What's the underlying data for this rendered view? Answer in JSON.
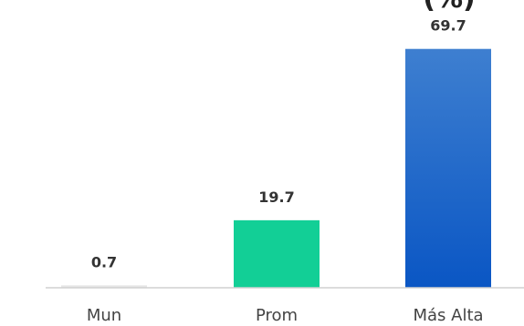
{
  "chart_data": {
    "type": "bar",
    "title_fragment": "(%)",
    "categories": [
      "Mun",
      "Prom",
      "Más Alta"
    ],
    "values": [
      0.7,
      19.7,
      69.7
    ],
    "data_labels": [
      "0.7",
      "19.7",
      "69.7"
    ],
    "ylim": [
      0,
      76
    ],
    "grid": false,
    "legend": "none",
    "colors": {
      "Mun": "#e6e6e6",
      "Prom": "#12cf96",
      "Más Alta_top": "#3e7fd0",
      "Más Alta_bottom": "#0a56c4",
      "axis": "#d0d0d0"
    }
  }
}
